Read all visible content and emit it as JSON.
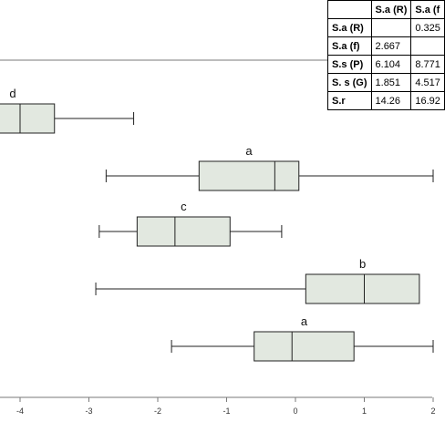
{
  "chart_data": {
    "type": "boxplot",
    "orientation": "horizontal",
    "xlim": [
      -4.3,
      2.0
    ],
    "xticks": [
      -4,
      -3,
      -2,
      -1,
      0,
      1,
      2
    ],
    "boxes": [
      {
        "letter": "d",
        "whisker_low": null,
        "q1": null,
        "median": -4.0,
        "q3": -3.5,
        "whisker_high": -2.35
      },
      {
        "letter": "a",
        "whisker_low": -2.75,
        "q1": -1.4,
        "median": -0.3,
        "q3": 0.05,
        "whisker_high": 2.0
      },
      {
        "letter": "c",
        "whisker_low": -2.85,
        "q1": -2.3,
        "median": -1.75,
        "q3": -0.95,
        "whisker_high": -0.2
      },
      {
        "letter": "b",
        "whisker_low": -2.9,
        "q1": 0.15,
        "median": 1.0,
        "q3": 1.8,
        "whisker_high": null
      },
      {
        "letter": "a",
        "whisker_low": -1.8,
        "q1": -0.6,
        "median": -0.05,
        "q3": 0.85,
        "whisker_high": 2.0
      }
    ],
    "table": {
      "header": [
        "",
        "S.a (R)",
        "S.a (f"
      ],
      "rows": [
        [
          "S.a (R)",
          "",
          "0.325"
        ],
        [
          "S.a (f)",
          "2.667",
          ""
        ],
        [
          "S.s (P)",
          "6.104",
          "8.771"
        ],
        [
          "S. s (G)",
          "1.851",
          "4.517"
        ],
        [
          "S.r",
          "14.26",
          "16.92"
        ]
      ]
    }
  }
}
